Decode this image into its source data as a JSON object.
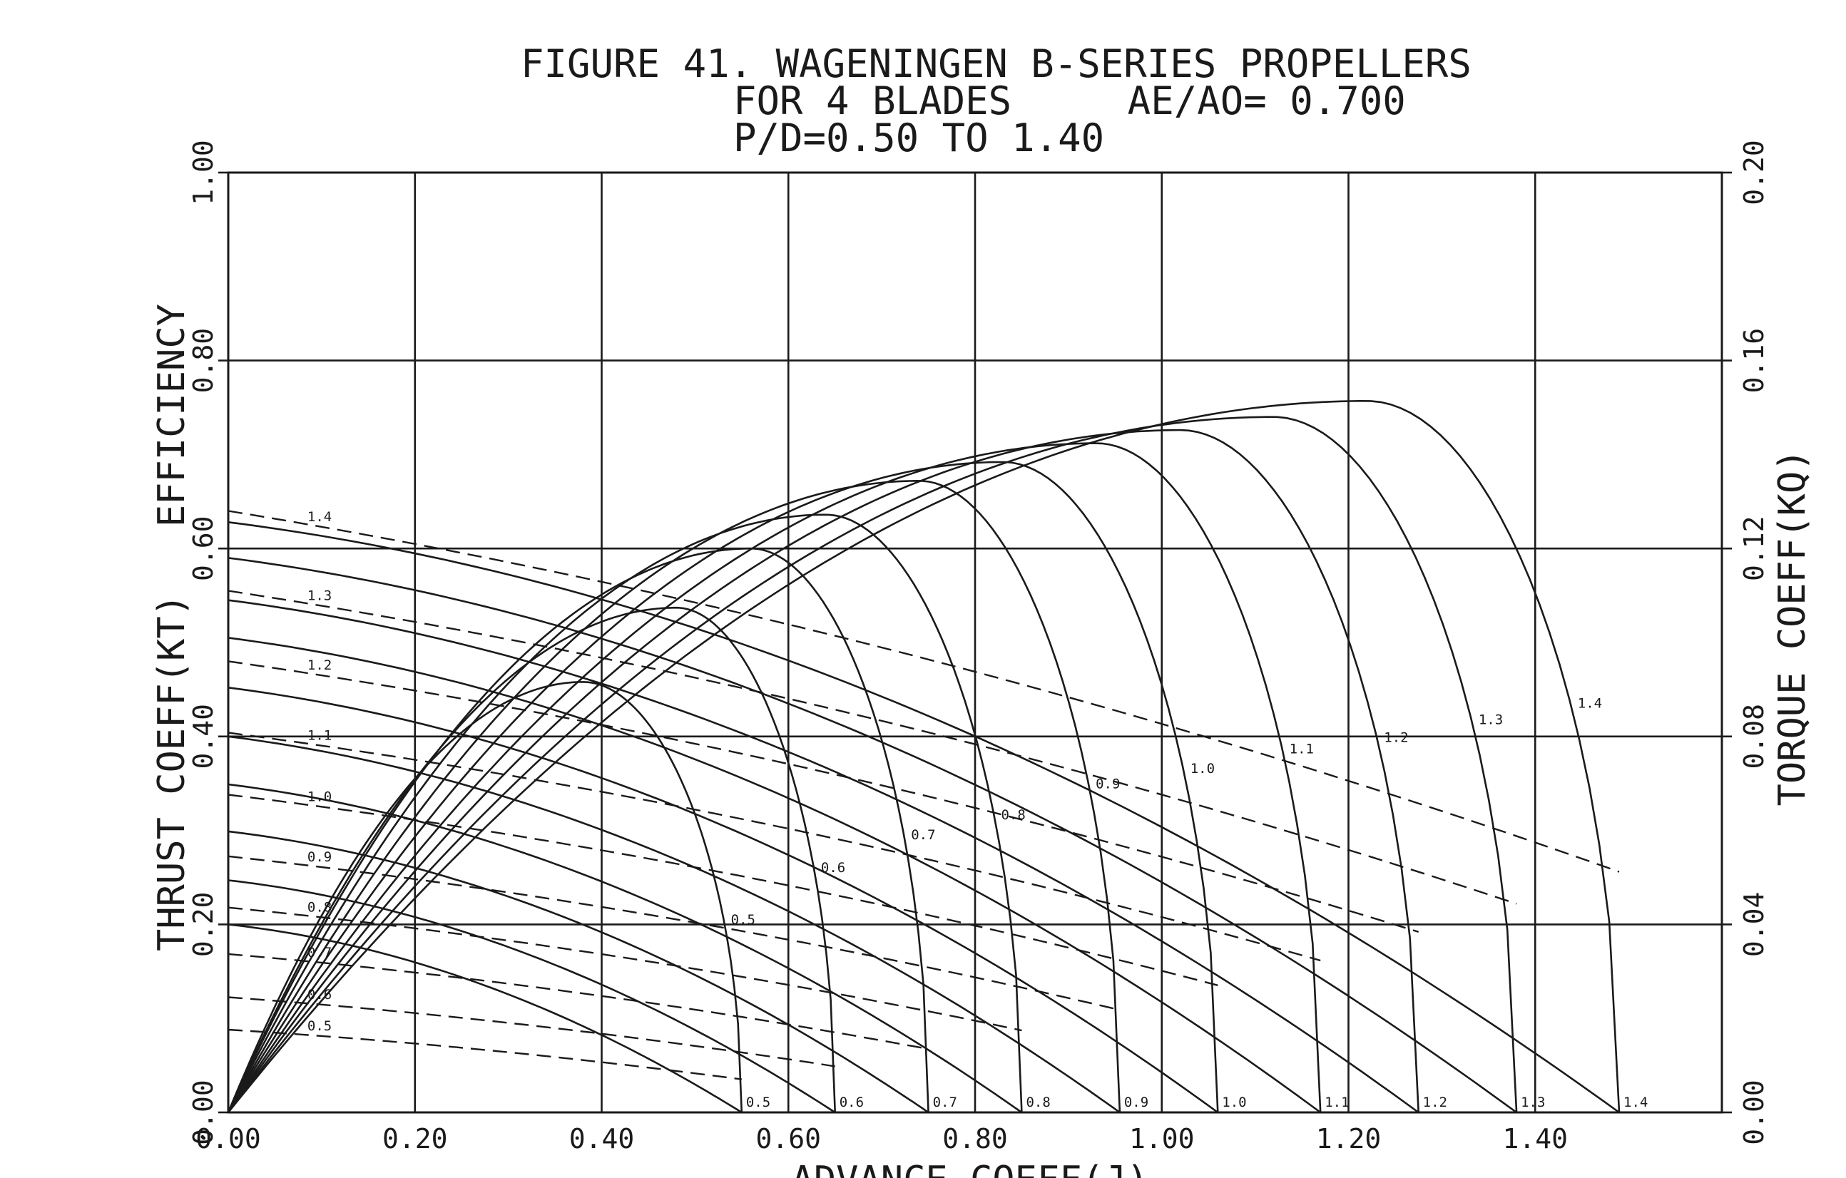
{
  "chart_data": {
    "type": "line",
    "title": "FIGURE 41. WAGENINGEN B-SERIES PROPELLERS",
    "subtitle_1": "FOR 4 BLADES     AE/AO= 0.700",
    "subtitle_2": "P/D=0.50 TO 1.40",
    "xlabel": "ADVANCE COEFF(J)",
    "ylabel_left": "THRUST COEFF(KT)   EFFICIENCY",
    "ylabel_right": "TORQUE COEFF(KQ)",
    "xlim": [
      0,
      1.6
    ],
    "ylim_left": [
      0,
      1.0
    ],
    "ylim_right": [
      0,
      0.2
    ],
    "grid": true,
    "x_ticks": [
      "0.00",
      "0.20",
      "0.40",
      "0.60",
      "0.80",
      "1.00",
      "1.20",
      "1.40"
    ],
    "x_tick_values": [
      0,
      0.2,
      0.4,
      0.6,
      0.8,
      1.0,
      1.2,
      1.4
    ],
    "y_ticks_left": [
      "0.00",
      "0.20",
      "0.40",
      "0.60",
      "0.80",
      "1.00"
    ],
    "y_tick_values_left": [
      0,
      0.2,
      0.4,
      0.6,
      0.8,
      1.0
    ],
    "y_ticks_right": [
      "0.00",
      "0.04",
      "0.08",
      "0.12",
      "0.16",
      "0.20"
    ],
    "y_tick_values_right": [
      0,
      0.04,
      0.08,
      0.12,
      0.16,
      0.2
    ],
    "pitch_labels": [
      "0.5",
      "0.6",
      "0.7",
      "0.8",
      "0.9",
      "1.0",
      "1.1",
      "1.2",
      "1.3",
      "1.4"
    ],
    "series": [
      {
        "pd": 0.5,
        "j0": 0.55,
        "kt0": 0.2,
        "kq0": 0.0176,
        "eta_max": 0.458,
        "eta_j": 0.38
      },
      {
        "pd": 0.6,
        "j0": 0.65,
        "kt0": 0.247,
        "kq0": 0.0245,
        "eta_max": 0.537,
        "eta_j": 0.48
      },
      {
        "pd": 0.7,
        "j0": 0.75,
        "kt0": 0.299,
        "kq0": 0.0337,
        "eta_max": 0.6,
        "eta_j": 0.56
      },
      {
        "pd": 0.8,
        "j0": 0.85,
        "kt0": 0.349,
        "kq0": 0.0436,
        "eta_max": 0.636,
        "eta_j": 0.64
      },
      {
        "pd": 0.9,
        "j0": 0.955,
        "kt0": 0.4,
        "kq0": 0.0545,
        "eta_max": 0.672,
        "eta_j": 0.74
      },
      {
        "pd": 1.0,
        "j0": 1.06,
        "kt0": 0.452,
        "kq0": 0.0676,
        "eta_max": 0.692,
        "eta_j": 0.83
      },
      {
        "pd": 1.1,
        "j0": 1.17,
        "kt0": 0.505,
        "kq0": 0.0808,
        "eta_max": 0.712,
        "eta_j": 0.93
      },
      {
        "pd": 1.2,
        "j0": 1.275,
        "kt0": 0.545,
        "kq0": 0.096,
        "eta_max": 0.726,
        "eta_j": 1.02
      },
      {
        "pd": 1.3,
        "j0": 1.38,
        "kt0": 0.59,
        "kq0": 0.111,
        "eta_max": 0.74,
        "eta_j": 1.12
      },
      {
        "pd": 1.4,
        "j0": 1.49,
        "kt0": 0.628,
        "kq0": 0.128,
        "eta_max": 0.757,
        "eta_j": 1.22
      }
    ]
  }
}
